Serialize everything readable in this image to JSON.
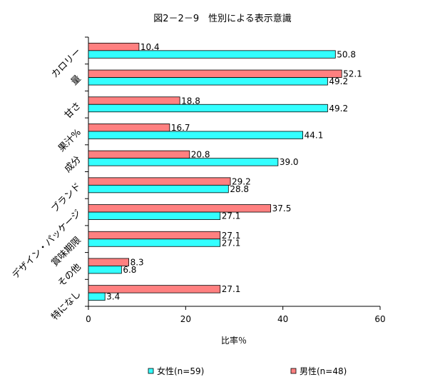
{
  "chart_data": {
    "type": "bar",
    "orientation": "horizontal",
    "title": "図2－2－9　性別による表示意識",
    "xlabel": "比率％",
    "ylabel": "",
    "xlim": [
      0,
      60
    ],
    "xticks": [
      "0",
      "20",
      "40",
      "60"
    ],
    "grid": false,
    "legend_position": "bottom",
    "categories": [
      "カロリー",
      "量",
      "甘さ",
      "果汁%",
      "成分",
      "ブランド",
      "デザイン・パッケージ",
      "賞味期限",
      "その他",
      "特になし"
    ],
    "series": [
      {
        "name": "女性(n=59)",
        "color": "#33ffff",
        "values": [
          50.8,
          49.2,
          49.2,
          44.1,
          39.0,
          28.8,
          27.1,
          27.1,
          6.8,
          3.4
        ],
        "labels": [
          "50.8",
          "49.2",
          "49.2",
          "44.1",
          "39.0",
          "28.8",
          "27.1",
          "27.1",
          "6.8",
          "3.4"
        ]
      },
      {
        "name": "男性(n=48)",
        "color": "#ff8080",
        "values": [
          10.4,
          52.1,
          18.8,
          16.7,
          20.8,
          29.2,
          37.5,
          27.1,
          8.3,
          27.1
        ],
        "labels": [
          "10.4",
          "52.1",
          "18.8",
          "16.7",
          "20.8",
          "29.2",
          "37.5",
          "27.1",
          "8.3",
          "27.1"
        ]
      }
    ]
  }
}
